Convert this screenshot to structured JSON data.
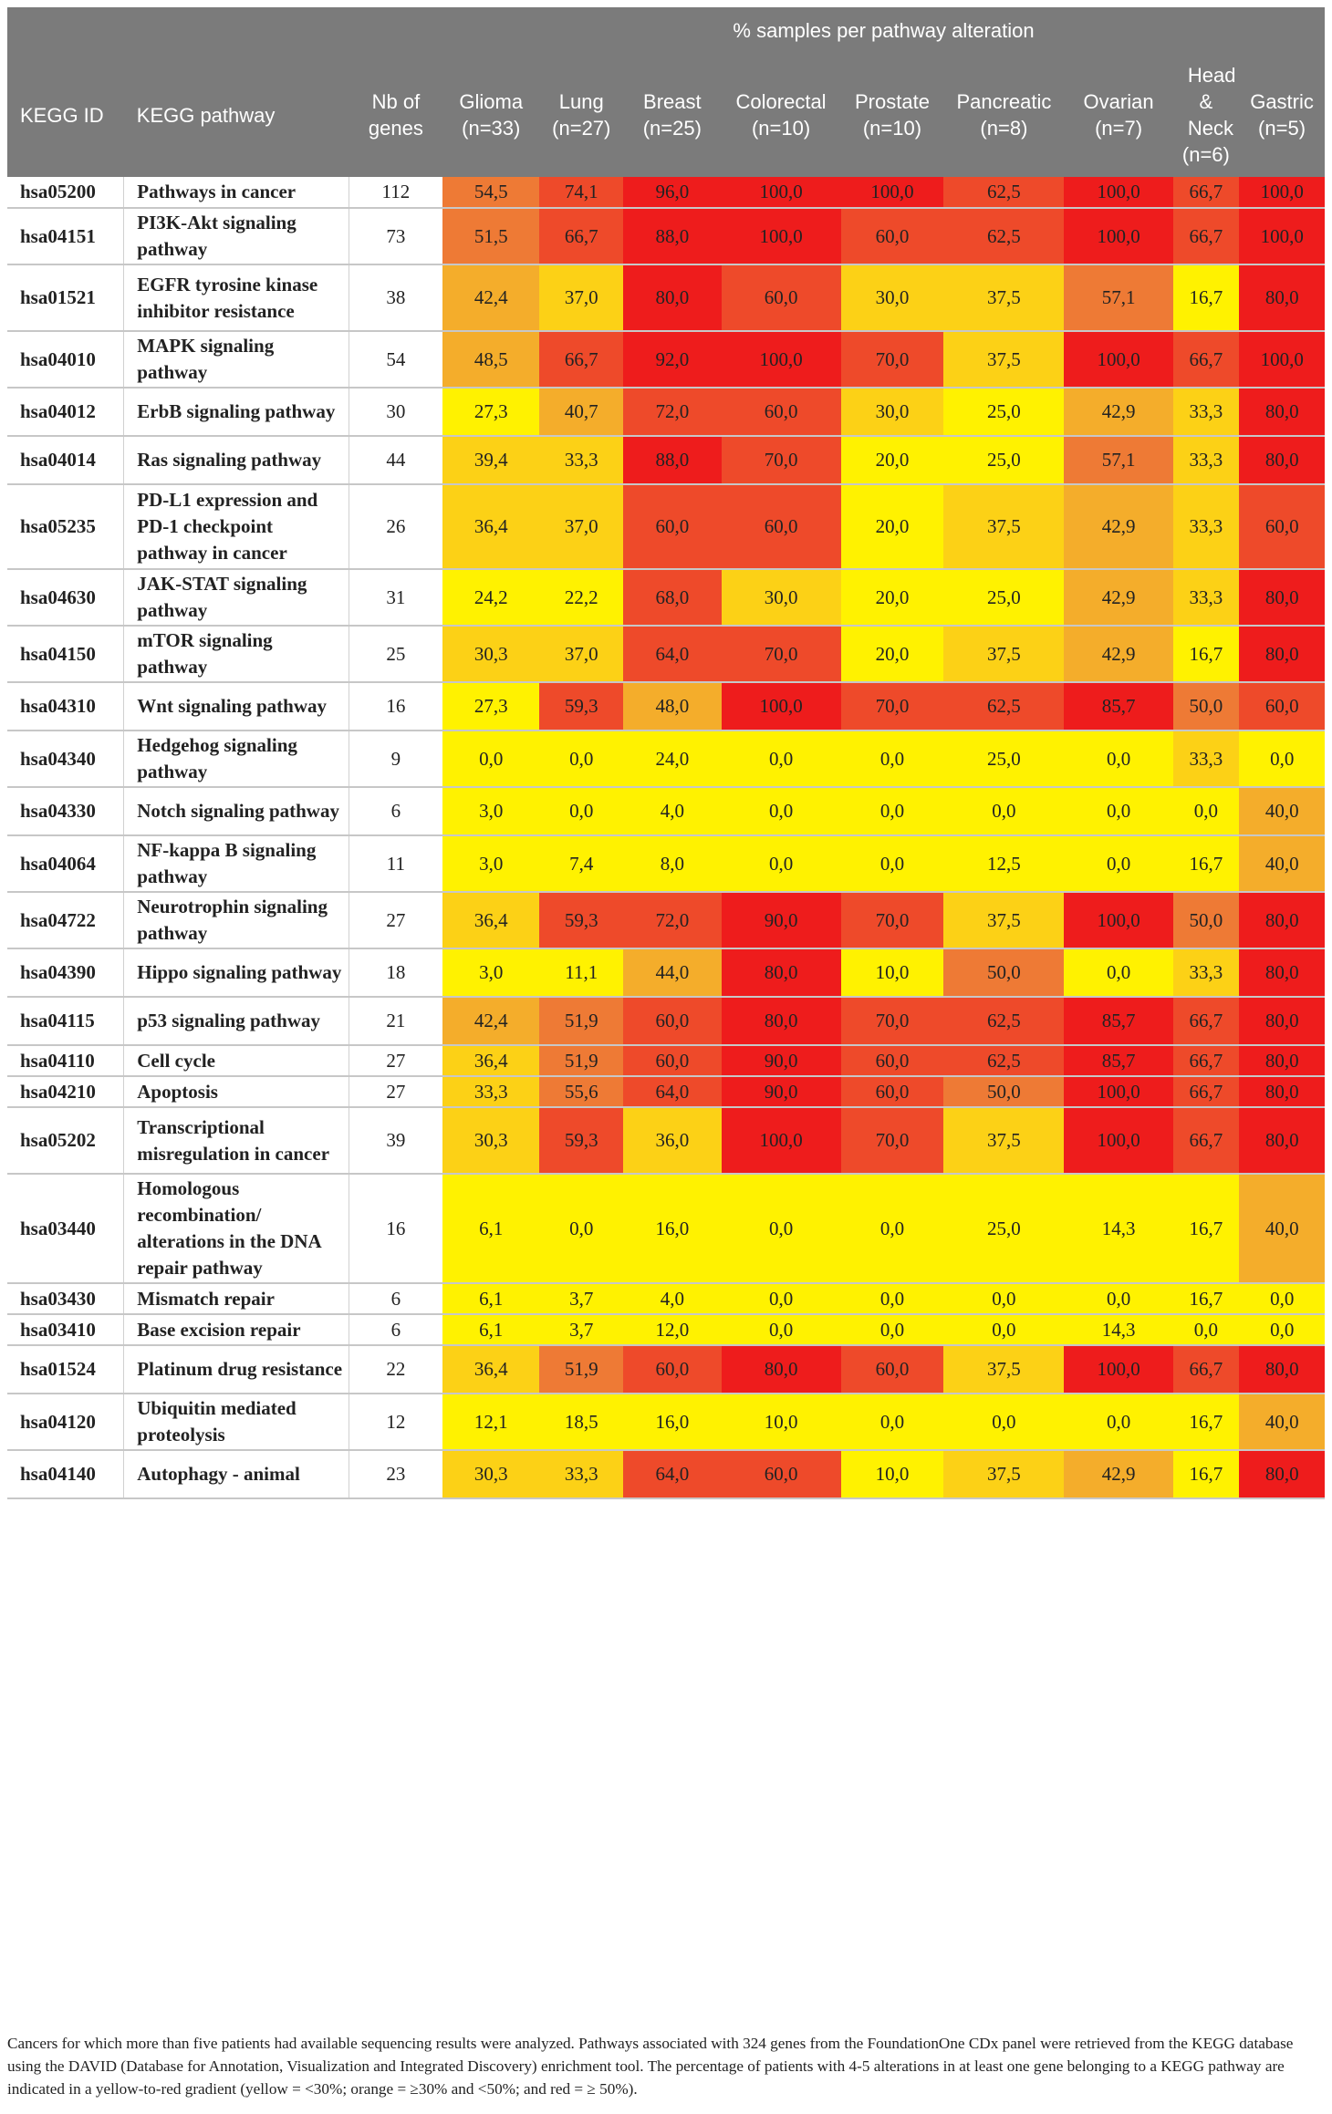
{
  "header": {
    "kegg_id": "KEGG ID",
    "kegg_pathway": "KEGG pathway",
    "nb_genes": "Nb of genes",
    "group_label": "% samples per pathway alteration",
    "cancers": [
      {
        "name": "Glioma",
        "n": "(n=33)"
      },
      {
        "name": "Lung",
        "n": "(n=27)"
      },
      {
        "name": "Breast",
        "n": "(n=25)"
      },
      {
        "name": "Colorectal",
        "n": "(n=10)"
      },
      {
        "name": "Prostate",
        "n": "(n=10)"
      },
      {
        "name": "Pancreatic",
        "n": "(n=8)"
      },
      {
        "name": "Ovarian",
        "n": "(n=7)"
      },
      {
        "name": "Head & Neck",
        "n": "(n=6)"
      },
      {
        "name": "Gastric",
        "n": "(n=5)"
      }
    ]
  },
  "colors": {
    "yellow": "#fff200",
    "yellow_orange": "#fcd116",
    "orange": "#f4ad2b",
    "dark_orange": "#ee7a35",
    "red_orange": "#ee4a2a",
    "red": "#ee1c1c",
    "header_bg": "#7b7b7b"
  },
  "rows": [
    {
      "id": "hsa05200",
      "pathway": "Pathways in cancer",
      "genes": "112",
      "values": [
        "54,5",
        "74,1",
        "96,0",
        "100,0",
        "100,0",
        "62,5",
        "100,0",
        "66,7",
        "100,0"
      ]
    },
    {
      "id": "hsa04151",
      "pathway": "PI3K-Akt signaling pathway",
      "genes": "73",
      "values": [
        "51,5",
        "66,7",
        "88,0",
        "100,0",
        "60,0",
        "62,5",
        "100,0",
        "66,7",
        "100,0"
      ]
    },
    {
      "id": "hsa01521",
      "pathway": "EGFR tyrosine kinase inhibitor resistance",
      "genes": "38",
      "values": [
        "42,4",
        "37,0",
        "80,0",
        "60,0",
        "30,0",
        "37,5",
        "57,1",
        "16,7",
        "80,0"
      ]
    },
    {
      "id": "hsa04010",
      "pathway": "MAPK signaling pathway",
      "genes": "54",
      "values": [
        "48,5",
        "66,7",
        "92,0",
        "100,0",
        "70,0",
        "37,5",
        "100,0",
        "66,7",
        "100,0"
      ]
    },
    {
      "id": "hsa04012",
      "pathway": "ErbB signaling pathway",
      "genes": "30",
      "values": [
        "27,3",
        "40,7",
        "72,0",
        "60,0",
        "30,0",
        "25,0",
        "42,9",
        "33,3",
        "80,0"
      ]
    },
    {
      "id": "hsa04014",
      "pathway": "Ras signaling pathway",
      "genes": "44",
      "values": [
        "39,4",
        "33,3",
        "88,0",
        "70,0",
        "20,0",
        "25,0",
        "57,1",
        "33,3",
        "80,0"
      ]
    },
    {
      "id": "hsa05235",
      "pathway": "PD-L1 expression and PD-1 checkpoint pathway in cancer",
      "genes": "26",
      "values": [
        "36,4",
        "37,0",
        "60,0",
        "60,0",
        "20,0",
        "37,5",
        "42,9",
        "33,3",
        "60,0"
      ]
    },
    {
      "id": "hsa04630",
      "pathway": "JAK-STAT signaling pathway",
      "genes": "31",
      "values": [
        "24,2",
        "22,2",
        "68,0",
        "30,0",
        "20,0",
        "25,0",
        "42,9",
        "33,3",
        "80,0"
      ]
    },
    {
      "id": "hsa04150",
      "pathway": "mTOR signaling pathway",
      "genes": "25",
      "values": [
        "30,3",
        "37,0",
        "64,0",
        "70,0",
        "20,0",
        "37,5",
        "42,9",
        "16,7",
        "80,0"
      ]
    },
    {
      "id": "hsa04310",
      "pathway": "Wnt signaling pathway",
      "genes": "16",
      "values": [
        "27,3",
        "59,3",
        "48,0",
        "100,0",
        "70,0",
        "62,5",
        "85,7",
        "50,0",
        "60,0"
      ]
    },
    {
      "id": "hsa04340",
      "pathway": "Hedgehog signaling pathway",
      "genes": "9",
      "values": [
        "0,0",
        "0,0",
        "24,0",
        "0,0",
        "0,0",
        "25,0",
        "0,0",
        "33,3",
        "0,0"
      ]
    },
    {
      "id": "hsa04330",
      "pathway": "Notch signaling pathway",
      "genes": "6",
      "values": [
        "3,0",
        "0,0",
        "4,0",
        "0,0",
        "0,0",
        "0,0",
        "0,0",
        "0,0",
        "40,0"
      ]
    },
    {
      "id": "hsa04064",
      "pathway": "NF-kappa B signaling pathway",
      "genes": "11",
      "values": [
        "3,0",
        "7,4",
        "8,0",
        "0,0",
        "0,0",
        "12,5",
        "0,0",
        "16,7",
        "40,0"
      ]
    },
    {
      "id": "hsa04722",
      "pathway": "Neurotrophin signaling pathway",
      "genes": "27",
      "values": [
        "36,4",
        "59,3",
        "72,0",
        "90,0",
        "70,0",
        "37,5",
        "100,0",
        "50,0",
        "80,0"
      ]
    },
    {
      "id": "hsa04390",
      "pathway": "Hippo signaling pathway",
      "genes": "18",
      "values": [
        "3,0",
        "11,1",
        "44,0",
        "80,0",
        "10,0",
        "50,0",
        "0,0",
        "33,3",
        "80,0"
      ]
    },
    {
      "id": "hsa04115",
      "pathway": "p53 signaling pathway",
      "genes": "21",
      "values": [
        "42,4",
        "51,9",
        "60,0",
        "80,0",
        "70,0",
        "62,5",
        "85,7",
        "66,7",
        "80,0"
      ]
    },
    {
      "id": "hsa04110",
      "pathway": "Cell cycle",
      "genes": "27",
      "values": [
        "36,4",
        "51,9",
        "60,0",
        "90,0",
        "60,0",
        "62,5",
        "85,7",
        "66,7",
        "80,0"
      ]
    },
    {
      "id": "hsa04210",
      "pathway": "Apoptosis",
      "genes": "27",
      "values": [
        "33,3",
        "55,6",
        "64,0",
        "90,0",
        "60,0",
        "50,0",
        "100,0",
        "66,7",
        "80,0"
      ]
    },
    {
      "id": "hsa05202",
      "pathway": "Transcriptional misregulation in cancer",
      "genes": "39",
      "values": [
        "30,3",
        "59,3",
        "36,0",
        "100,0",
        "70,0",
        "37,5",
        "100,0",
        "66,7",
        "80,0"
      ]
    },
    {
      "id": "hsa03440",
      "pathway": "Homologous recombination/ alterations in the DNA repair pathway",
      "genes": "16",
      "values": [
        "6,1",
        "0,0",
        "16,0",
        "0,0",
        "0,0",
        "25,0",
        "14,3",
        "16,7",
        "40,0"
      ]
    },
    {
      "id": "hsa03430",
      "pathway": "Mismatch repair",
      "genes": "6",
      "values": [
        "6,1",
        "3,7",
        "4,0",
        "0,0",
        "0,0",
        "0,0",
        "0,0",
        "16,7",
        "0,0"
      ]
    },
    {
      "id": "hsa03410",
      "pathway": "Base excision repair",
      "genes": "6",
      "values": [
        "6,1",
        "3,7",
        "12,0",
        "0,0",
        "0,0",
        "0,0",
        "14,3",
        "0,0",
        "0,0"
      ]
    },
    {
      "id": "hsa01524",
      "pathway": "Platinum drug resistance",
      "genes": "22",
      "values": [
        "36,4",
        "51,9",
        "60,0",
        "80,0",
        "60,0",
        "37,5",
        "100,0",
        "66,7",
        "80,0"
      ]
    },
    {
      "id": "hsa04120",
      "pathway": "Ubiquitin mediated proteolysis",
      "genes": "12",
      "values": [
        "12,1",
        "18,5",
        "16,0",
        "10,0",
        "0,0",
        "0,0",
        "0,0",
        "16,7",
        "40,0"
      ]
    },
    {
      "id": "hsa04140",
      "pathway": "Autophagy - animal",
      "genes": "23",
      "values": [
        "30,3",
        "33,3",
        "64,0",
        "60,0",
        "10,0",
        "37,5",
        "42,9",
        "16,7",
        "80,0"
      ]
    }
  ],
  "footnote": "Cancers for which more than five patients had available sequencing results were analyzed. Pathways associated with 324 genes from the FoundationOne CDx panel were retrieved from the KEGG database using the DAVID (Database for Annotation, Visualization and Integrated Discovery) enrichment tool. The percentage of patients with 4-5 alterations in at least one gene belonging to a KEGG pathway are indicated in a yellow-to-red gradient (yellow = <30%; orange = ≥30% and <50%; and red = ≥ 50%)."
}
